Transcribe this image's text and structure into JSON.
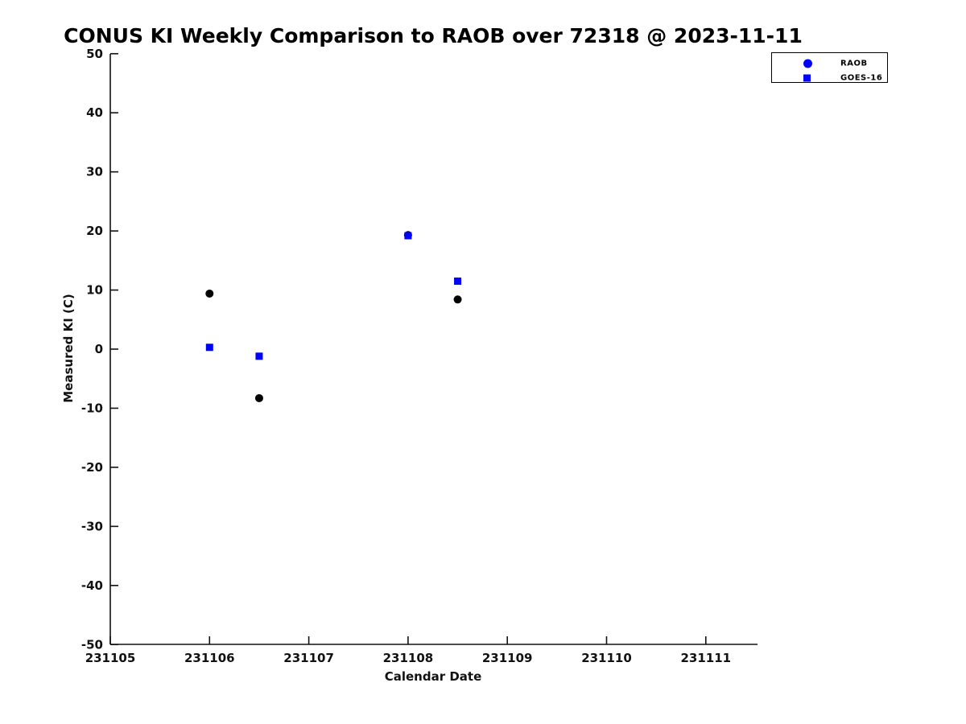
{
  "figure": {
    "background": "#ffffff",
    "text_color": "#111111",
    "accent_blue": "#0000ff",
    "marker_black": "#000000"
  },
  "chart_data": {
    "type": "scatter",
    "title": "CONUS KI Weekly Comparison to RAOB over 72318 @ 2023-11-11",
    "xlabel": "Calendar Date",
    "ylabel": "Measured KI (C)",
    "xlim": [
      231105,
      231111.5
    ],
    "ylim": [
      -50,
      50
    ],
    "xticks": [
      "231105",
      "231106",
      "231107",
      "231108",
      "231109",
      "231110",
      "231111"
    ],
    "yticks": [
      -50,
      -40,
      -30,
      -20,
      -10,
      0,
      10,
      20,
      30,
      40,
      50
    ],
    "grid": false,
    "axes_box": false,
    "legend": {
      "position": "upper right",
      "entries": [
        {
          "label": "RAOB",
          "marker": "circle",
          "color": "#0000ff"
        },
        {
          "label": "GOES-16",
          "marker": "square",
          "color": "#0000ff"
        }
      ]
    },
    "series": [
      {
        "name": "RAOB",
        "marker": "circle",
        "color": "#000000",
        "points": [
          {
            "x": 231106.0,
            "y": 9.4
          },
          {
            "x": 231106.5,
            "y": -8.3
          },
          {
            "x": 231108.0,
            "y": 19.3
          },
          {
            "x": 231108.5,
            "y": 8.4
          }
        ]
      },
      {
        "name": "GOES-16",
        "marker": "square",
        "color": "#0000ff",
        "points": [
          {
            "x": 231106.0,
            "y": 0.3
          },
          {
            "x": 231106.5,
            "y": -1.2
          },
          {
            "x": 231108.0,
            "y": 19.2
          },
          {
            "x": 231108.5,
            "y": 11.5
          }
        ]
      }
    ]
  }
}
